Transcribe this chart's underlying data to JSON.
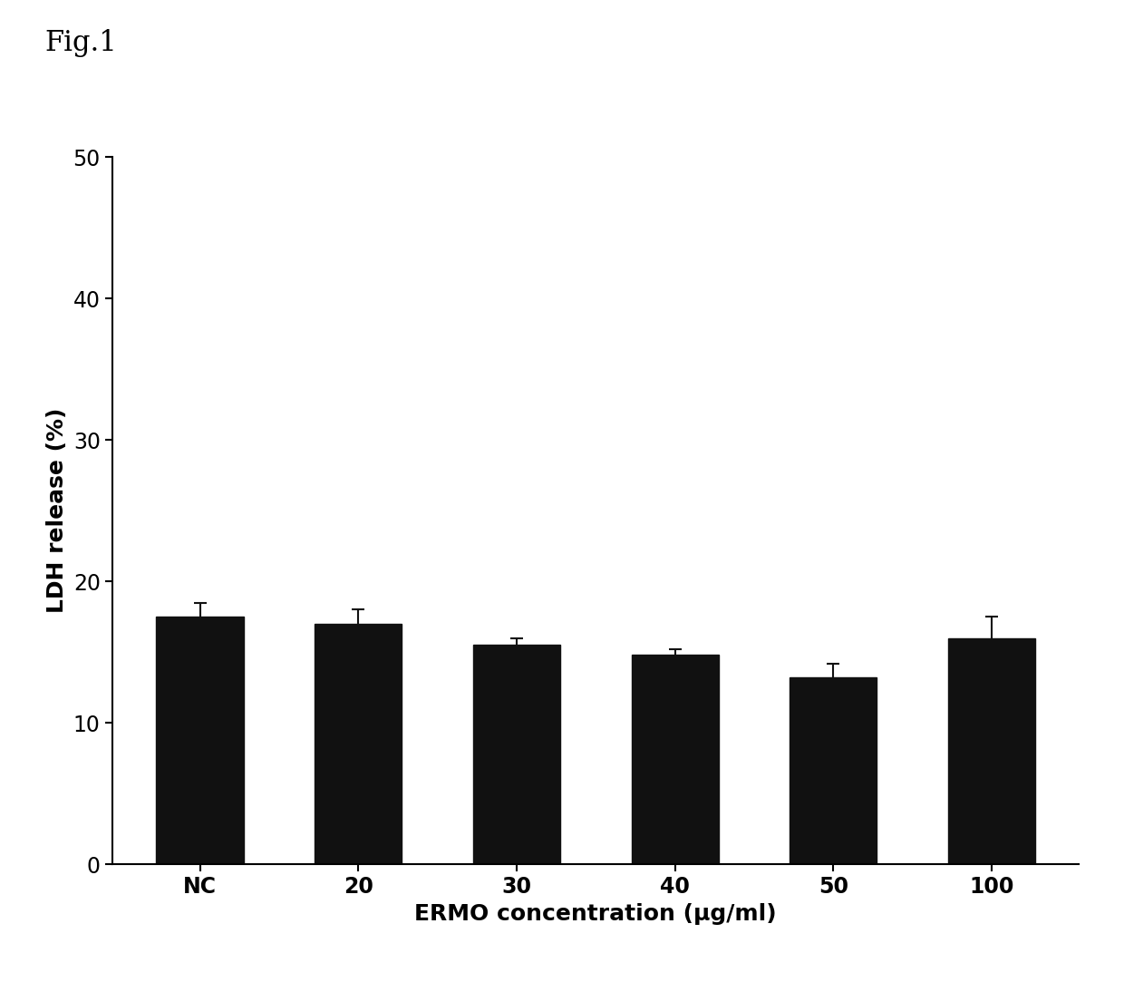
{
  "categories": [
    "NC",
    "20",
    "30",
    "40",
    "50",
    "100"
  ],
  "values": [
    17.5,
    17.0,
    15.5,
    14.8,
    13.2,
    16.0
  ],
  "errors": [
    1.0,
    1.0,
    0.5,
    0.4,
    1.0,
    1.5
  ],
  "bar_color": "#111111",
  "error_color": "#111111",
  "ylabel": "LDH release (%)",
  "xlabel": "ERMO concentration (μg/ml)",
  "ylim": [
    0,
    50
  ],
  "yticks": [
    0,
    10,
    20,
    30,
    40,
    50
  ],
  "fig_title": "Fig.1",
  "background_color": "#ffffff",
  "bar_width": 0.55,
  "title_fontsize": 22,
  "axis_label_fontsize": 18,
  "tick_fontsize": 17
}
